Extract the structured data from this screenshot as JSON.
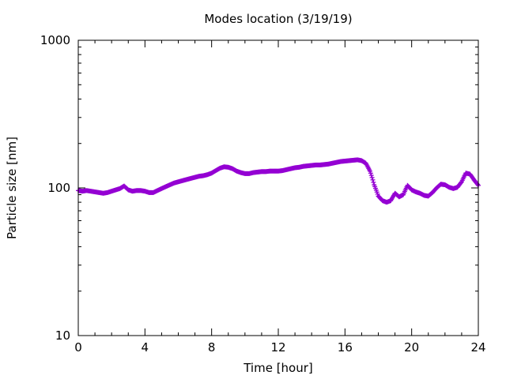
{
  "chart_data": {
    "type": "scatter",
    "title": "Modes location (3/19/19)",
    "xlabel": "Time [hour]",
    "ylabel": "Particle size [nm]",
    "xlim": [
      0,
      24
    ],
    "ylim": [
      10,
      1000
    ],
    "yscale": "log",
    "x_ticks": [
      0,
      4,
      8,
      12,
      16,
      20,
      24
    ],
    "x_tick_labels": [
      "0",
      "4",
      "8",
      "12",
      "16",
      "20",
      "24"
    ],
    "y_ticks": [
      10,
      100,
      1000
    ],
    "y_tick_labels": [
      "10",
      "100",
      "1000"
    ],
    "grid": false,
    "legend": "none",
    "marker": "plus",
    "color": "#9400d3",
    "series": [
      {
        "x": [
          0,
          0.25,
          0.5,
          0.75,
          1.0,
          1.25,
          1.5,
          1.75,
          2.0,
          2.25,
          2.5,
          2.75,
          3.0,
          3.25,
          3.5,
          3.75,
          4.0,
          4.25,
          4.5,
          4.75,
          5.0,
          5.25,
          5.5,
          5.75,
          6.0,
          6.25,
          6.5,
          6.75,
          7.0,
          7.25,
          7.5,
          7.75,
          8.0,
          8.25,
          8.5,
          8.75,
          9.0,
          9.25,
          9.5,
          9.75,
          10.0,
          10.25,
          10.5,
          10.75,
          11.0,
          11.25,
          11.5,
          11.75,
          12.0,
          12.25,
          12.5,
          12.75,
          13.0,
          13.25,
          13.5,
          13.75,
          14.0,
          14.25,
          14.5,
          14.75,
          15.0,
          15.25,
          15.5,
          15.75,
          16.0,
          16.25,
          16.5,
          16.75,
          17.0,
          17.25,
          17.5,
          17.75,
          18.0,
          18.25,
          18.5,
          18.75,
          19.0,
          19.25,
          19.5,
          19.75,
          20.0,
          20.25,
          20.5,
          20.75,
          21.0,
          21.25,
          21.5,
          21.75,
          22.0,
          22.25,
          22.5,
          22.75,
          23.0,
          23.25,
          23.5,
          23.75,
          24.0
        ],
        "y": [
          96,
          95,
          96,
          95,
          94,
          93,
          92,
          93,
          95,
          97,
          99,
          103,
          97,
          95,
          96,
          96,
          95,
          93,
          93,
          96,
          99,
          102,
          105,
          108,
          110,
          112,
          114,
          116,
          118,
          120,
          121,
          123,
          126,
          131,
          136,
          139,
          138,
          135,
          130,
          127,
          125,
          125,
          127,
          128,
          129,
          129,
          130,
          130,
          130,
          131,
          133,
          135,
          137,
          138,
          140,
          141,
          142,
          143,
          143,
          144,
          145,
          147,
          149,
          151,
          152,
          153,
          154,
          155,
          153,
          147,
          130,
          105,
          88,
          82,
          80,
          82,
          92,
          87,
          90,
          104,
          97,
          94,
          92,
          89,
          88,
          93,
          100,
          106,
          105,
          101,
          99,
          101,
          110,
          126,
          124,
          113,
          104
        ]
      }
    ]
  }
}
